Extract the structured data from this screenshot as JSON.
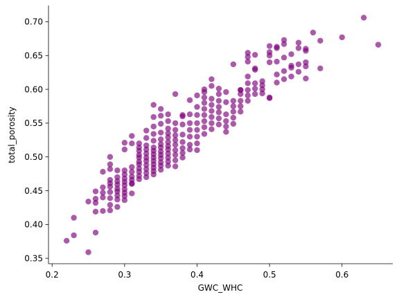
{
  "chart_data": {
    "type": "scatter",
    "title": "",
    "xlabel": "GWC_WHC",
    "ylabel": "total_porosity",
    "xlim": [
      0.195,
      0.67
    ],
    "ylim": [
      0.342,
      0.724
    ],
    "xticks": [
      0.2,
      0.3,
      0.4,
      0.5,
      0.6
    ],
    "xtick_labels": [
      "0.2",
      "0.3",
      "0.4",
      "0.5",
      "0.6"
    ],
    "yticks": [
      0.35,
      0.4,
      0.45,
      0.5,
      0.55,
      0.6,
      0.65,
      0.7
    ],
    "ytick_labels": [
      "0.35",
      "0.40",
      "0.45",
      "0.50",
      "0.55",
      "0.60",
      "0.65",
      "0.70"
    ],
    "grid": false,
    "legend": "none",
    "point_color": "#800080",
    "point_alpha": 0.65,
    "series": [
      {
        "x": [
          0.22,
          0.23,
          0.23,
          0.25,
          0.25,
          0.26,
          0.26,
          0.26,
          0.26,
          0.26,
          0.27,
          0.27,
          0.27,
          0.27,
          0.27,
          0.28,
          0.28,
          0.28,
          0.28,
          0.28,
          0.28,
          0.28,
          0.28,
          0.28,
          0.28,
          0.29,
          0.29,
          0.29,
          0.29,
          0.29,
          0.29,
          0.29,
          0.29,
          0.29,
          0.3,
          0.3,
          0.3,
          0.3,
          0.3,
          0.3,
          0.3,
          0.3,
          0.3,
          0.3,
          0.3,
          0.31,
          0.31,
          0.31,
          0.31,
          0.31,
          0.31,
          0.31,
          0.31,
          0.31,
          0.32,
          0.32,
          0.32,
          0.32,
          0.32,
          0.32,
          0.32,
          0.32,
          0.32,
          0.32,
          0.32,
          0.33,
          0.33,
          0.33,
          0.33,
          0.33,
          0.33,
          0.33,
          0.33,
          0.33,
          0.33,
          0.33,
          0.34,
          0.34,
          0.34,
          0.34,
          0.34,
          0.34,
          0.34,
          0.34,
          0.34,
          0.34,
          0.34,
          0.34,
          0.34,
          0.34,
          0.35,
          0.35,
          0.35,
          0.35,
          0.35,
          0.35,
          0.35,
          0.35,
          0.35,
          0.35,
          0.35,
          0.35,
          0.35,
          0.36,
          0.36,
          0.36,
          0.36,
          0.36,
          0.36,
          0.36,
          0.36,
          0.36,
          0.36,
          0.36,
          0.36,
          0.37,
          0.37,
          0.37,
          0.37,
          0.37,
          0.37,
          0.37,
          0.37,
          0.37,
          0.37,
          0.38,
          0.38,
          0.38,
          0.38,
          0.38,
          0.38,
          0.38,
          0.38,
          0.39,
          0.39,
          0.39,
          0.39,
          0.39,
          0.39,
          0.39,
          0.4,
          0.4,
          0.4,
          0.4,
          0.4,
          0.4,
          0.4,
          0.4,
          0.41,
          0.41,
          0.41,
          0.41,
          0.41,
          0.41,
          0.41,
          0.41,
          0.41,
          0.42,
          0.42,
          0.42,
          0.42,
          0.42,
          0.42,
          0.42,
          0.42,
          0.43,
          0.43,
          0.43,
          0.43,
          0.43,
          0.43,
          0.43,
          0.44,
          0.44,
          0.44,
          0.44,
          0.44,
          0.44,
          0.45,
          0.45,
          0.45,
          0.45,
          0.45,
          0.45,
          0.46,
          0.46,
          0.46,
          0.46,
          0.46,
          0.46,
          0.47,
          0.47,
          0.47,
          0.47,
          0.47,
          0.47,
          0.47,
          0.47,
          0.48,
          0.48,
          0.48,
          0.48,
          0.48,
          0.48,
          0.49,
          0.49,
          0.49,
          0.49,
          0.5,
          0.5,
          0.5,
          0.5,
          0.5,
          0.5,
          0.51,
          0.51,
          0.51,
          0.51,
          0.51,
          0.52,
          0.52,
          0.52,
          0.52,
          0.52,
          0.53,
          0.53,
          0.53,
          0.53,
          0.54,
          0.54,
          0.54,
          0.54,
          0.55,
          0.55,
          0.55,
          0.55,
          0.55,
          0.56,
          0.57,
          0.57,
          0.6,
          0.63,
          0.65
        ],
        "y": [
          0.376,
          0.384,
          0.41,
          0.359,
          0.434,
          0.388,
          0.419,
          0.432,
          0.438,
          0.449,
          0.42,
          0.44,
          0.447,
          0.455,
          0.478,
          0.421,
          0.429,
          0.439,
          0.448,
          0.456,
          0.461,
          0.466,
          0.482,
          0.489,
          0.5,
          0.426,
          0.437,
          0.443,
          0.449,
          0.453,
          0.459,
          0.464,
          0.47,
          0.48,
          0.436,
          0.442,
          0.447,
          0.452,
          0.458,
          0.463,
          0.468,
          0.474,
          0.48,
          0.511,
          0.521,
          0.446,
          0.461,
          0.466,
          0.471,
          0.478,
          0.485,
          0.52,
          0.531,
          0.46,
          0.467,
          0.472,
          0.478,
          0.483,
          0.489,
          0.493,
          0.499,
          0.503,
          0.509,
          0.514,
          0.52,
          0.47,
          0.476,
          0.482,
          0.488,
          0.494,
          0.499,
          0.505,
          0.511,
          0.517,
          0.528,
          0.539,
          0.474,
          0.479,
          0.484,
          0.489,
          0.494,
          0.499,
          0.504,
          0.509,
          0.514,
          0.524,
          0.534,
          0.545,
          0.559,
          0.577,
          0.481,
          0.487,
          0.492,
          0.498,
          0.503,
          0.508,
          0.514,
          0.519,
          0.526,
          0.536,
          0.549,
          0.561,
          0.571,
          0.487,
          0.493,
          0.499,
          0.505,
          0.511,
          0.516,
          0.522,
          0.529,
          0.535,
          0.542,
          0.553,
          0.563,
          0.486,
          0.495,
          0.503,
          0.51,
          0.518,
          0.525,
          0.532,
          0.54,
          0.55,
          0.593,
          0.499,
          0.506,
          0.513,
          0.522,
          0.533,
          0.548,
          0.56,
          0.562,
          0.511,
          0.518,
          0.53,
          0.54,
          0.55,
          0.563,
          0.584,
          0.51,
          0.52,
          0.53,
          0.54,
          0.55,
          0.562,
          0.574,
          0.591,
          0.534,
          0.544,
          0.553,
          0.562,
          0.571,
          0.58,
          0.588,
          0.596,
          0.6,
          0.541,
          0.55,
          0.559,
          0.568,
          0.577,
          0.586,
          0.605,
          0.615,
          0.548,
          0.557,
          0.566,
          0.574,
          0.583,
          0.593,
          0.601,
          0.537,
          0.545,
          0.553,
          0.563,
          0.581,
          0.596,
          0.549,
          0.558,
          0.567,
          0.575,
          0.583,
          0.637,
          0.567,
          0.575,
          0.583,
          0.593,
          0.599,
          0.599,
          0.583,
          0.591,
          0.599,
          0.609,
          0.619,
          0.641,
          0.648,
          0.654,
          0.593,
          0.601,
          0.609,
          0.629,
          0.631,
          0.651,
          0.594,
          0.6,
          0.606,
          0.612,
          0.588,
          0.587,
          0.64,
          0.65,
          0.655,
          0.664,
          0.61,
          0.622,
          0.641,
          0.661,
          0.663,
          0.615,
          0.627,
          0.647,
          0.667,
          0.673,
          0.619,
          0.632,
          0.635,
          0.652,
          0.626,
          0.637,
          0.661,
          0.669,
          0.616,
          0.634,
          0.64,
          0.657,
          0.66,
          0.684,
          0.631,
          0.672,
          0.677,
          0.706,
          0.666
        ]
      }
    ]
  }
}
